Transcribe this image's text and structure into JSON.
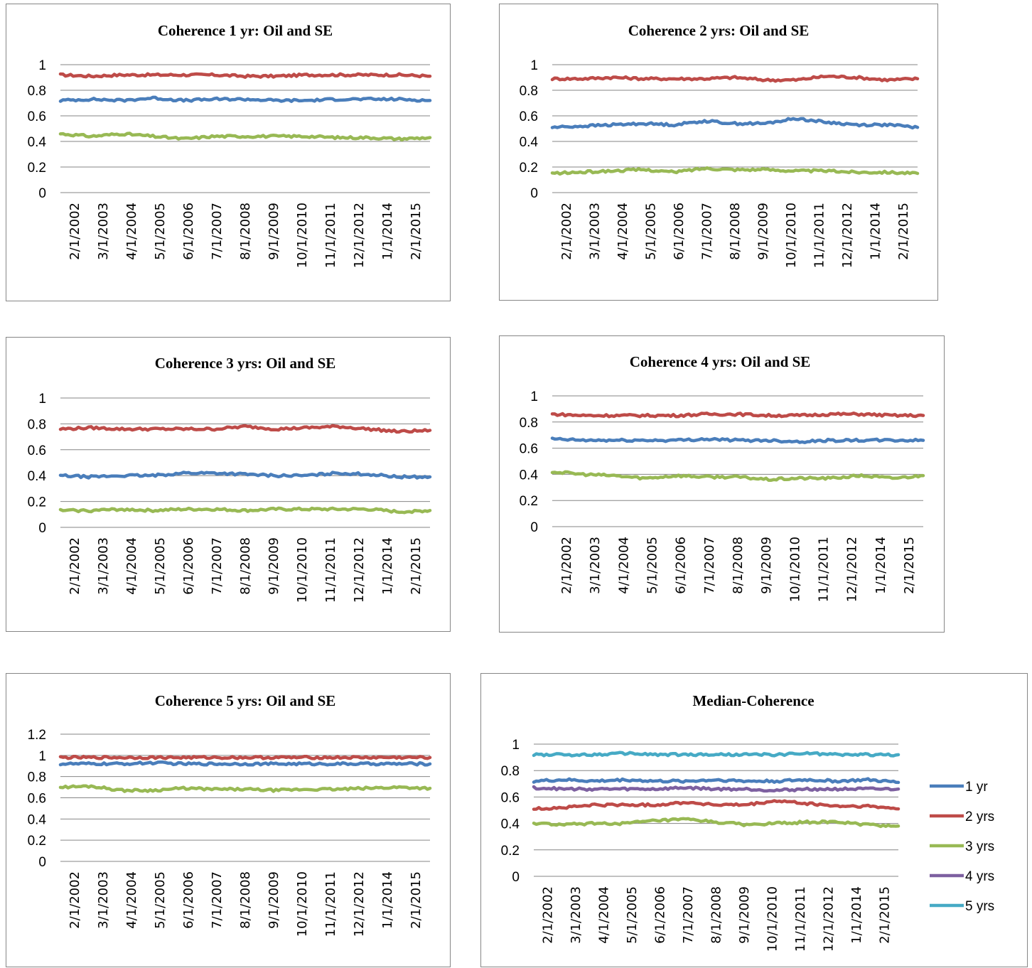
{
  "dates": [
    "2/1/2002",
    "3/1/2003",
    "4/1/2004",
    "5/1/2005",
    "6/1/2006",
    "7/1/2007",
    "8/1/2008",
    "9/1/2009",
    "10/1/2010",
    "11/1/2011",
    "12/1/2012",
    "1/1/2014",
    "2/1/2015"
  ],
  "colors": {
    "1 yr": "#4a7ebb",
    "2 yrs": "#be4b48",
    "3 yrs": "#98b954",
    "4 yrs": "#7d60a0",
    "5 yrs": "#46aac5"
  },
  "chart_data": [
    {
      "type": "line",
      "title": "Coherence 1 yr: Oil and SE",
      "x": [
        "2/1/2002",
        "3/1/2003",
        "4/1/2004",
        "5/1/2005",
        "6/1/2006",
        "7/1/2007",
        "8/1/2008",
        "9/1/2009",
        "10/1/2010",
        "11/1/2011",
        "12/1/2012",
        "1/1/2014",
        "2/1/2015"
      ],
      "y_ticks": [
        "0",
        "0.2",
        "0.4",
        "0.6",
        "0.8",
        "1"
      ],
      "ylim": [
        0,
        1
      ],
      "grid": true,
      "legend": false,
      "series": [
        {
          "color": "#be4b48",
          "values": [
            0.92,
            0.91,
            0.92,
            0.92,
            0.92,
            0.92,
            0.91,
            0.91,
            0.92,
            0.92,
            0.92,
            0.92,
            0.91
          ]
        },
        {
          "color": "#4a7ebb",
          "values": [
            0.72,
            0.73,
            0.72,
            0.74,
            0.72,
            0.73,
            0.73,
            0.72,
            0.72,
            0.73,
            0.73,
            0.73,
            0.72
          ]
        },
        {
          "color": "#98b954",
          "values": [
            0.46,
            0.44,
            0.46,
            0.44,
            0.42,
            0.44,
            0.44,
            0.44,
            0.44,
            0.43,
            0.43,
            0.42,
            0.43
          ]
        }
      ]
    },
    {
      "type": "line",
      "title": "Coherence 2 yrs: Oil and SE",
      "x": [
        "2/1/2002",
        "3/1/2003",
        "4/1/2004",
        "5/1/2005",
        "6/1/2006",
        "7/1/2007",
        "8/1/2008",
        "9/1/2009",
        "10/1/2010",
        "11/1/2011",
        "12/1/2012",
        "1/1/2014",
        "2/1/2015"
      ],
      "y_ticks": [
        "0",
        "0.2",
        "0.4",
        "0.6",
        "0.8",
        "1"
      ],
      "ylim": [
        0,
        1
      ],
      "grid": true,
      "legend": false,
      "series": [
        {
          "color": "#be4b48",
          "values": [
            0.89,
            0.89,
            0.9,
            0.89,
            0.89,
            0.89,
            0.9,
            0.88,
            0.88,
            0.91,
            0.9,
            0.88,
            0.89
          ]
        },
        {
          "color": "#4a7ebb",
          "values": [
            0.51,
            0.52,
            0.53,
            0.54,
            0.53,
            0.56,
            0.54,
            0.54,
            0.58,
            0.55,
            0.53,
            0.53,
            0.51
          ]
        },
        {
          "color": "#98b954",
          "values": [
            0.15,
            0.16,
            0.17,
            0.18,
            0.16,
            0.19,
            0.18,
            0.18,
            0.17,
            0.17,
            0.16,
            0.16,
            0.15
          ]
        }
      ]
    },
    {
      "type": "line",
      "title": "Coherence 3 yrs: Oil and SE",
      "x": [
        "2/1/2002",
        "3/1/2003",
        "4/1/2004",
        "5/1/2005",
        "6/1/2006",
        "7/1/2007",
        "8/1/2008",
        "9/1/2009",
        "10/1/2010",
        "11/1/2011",
        "12/1/2012",
        "1/1/2014",
        "2/1/2015"
      ],
      "y_ticks": [
        "0",
        "0.2",
        "0.4",
        "0.6",
        "0.8",
        "1"
      ],
      "ylim": [
        0,
        1
      ],
      "grid": true,
      "legend": false,
      "series": [
        {
          "color": "#be4b48",
          "values": [
            0.76,
            0.77,
            0.76,
            0.76,
            0.76,
            0.76,
            0.78,
            0.76,
            0.77,
            0.78,
            0.76,
            0.74,
            0.75
          ]
        },
        {
          "color": "#4a7ebb",
          "values": [
            0.4,
            0.39,
            0.4,
            0.4,
            0.42,
            0.42,
            0.41,
            0.4,
            0.4,
            0.42,
            0.41,
            0.39,
            0.39
          ]
        },
        {
          "color": "#98b954",
          "values": [
            0.13,
            0.13,
            0.14,
            0.13,
            0.14,
            0.14,
            0.13,
            0.14,
            0.14,
            0.14,
            0.14,
            0.12,
            0.13
          ]
        }
      ]
    },
    {
      "type": "line",
      "title": "Coherence 4 yrs: Oil and SE",
      "x": [
        "2/1/2002",
        "3/1/2003",
        "4/1/2004",
        "5/1/2005",
        "6/1/2006",
        "7/1/2007",
        "8/1/2008",
        "9/1/2009",
        "10/1/2010",
        "11/1/2011",
        "12/1/2012",
        "1/1/2014",
        "2/1/2015"
      ],
      "y_ticks": [
        "0",
        "0.2",
        "0.4",
        "0.6",
        "0.8",
        "1"
      ],
      "ylim": [
        0,
        1
      ],
      "grid": true,
      "legend": false,
      "series": [
        {
          "color": "#be4b48",
          "values": [
            0.86,
            0.85,
            0.85,
            0.85,
            0.85,
            0.86,
            0.86,
            0.85,
            0.85,
            0.86,
            0.86,
            0.85,
            0.85
          ]
        },
        {
          "color": "#4a7ebb",
          "values": [
            0.67,
            0.66,
            0.66,
            0.66,
            0.66,
            0.67,
            0.66,
            0.66,
            0.65,
            0.66,
            0.66,
            0.66,
            0.66
          ]
        },
        {
          "color": "#98b954",
          "values": [
            0.42,
            0.4,
            0.39,
            0.37,
            0.39,
            0.38,
            0.38,
            0.36,
            0.37,
            0.37,
            0.39,
            0.37,
            0.39
          ]
        }
      ]
    },
    {
      "type": "line",
      "title": "Coherence 5 yrs: Oil and SE",
      "x": [
        "2/1/2002",
        "3/1/2003",
        "4/1/2004",
        "5/1/2005",
        "6/1/2006",
        "7/1/2007",
        "8/1/2008",
        "9/1/2009",
        "10/1/2010",
        "11/1/2011",
        "12/1/2012",
        "1/1/2014",
        "2/1/2015"
      ],
      "y_ticks": [
        "0",
        "0.2",
        "0.4",
        "0.6",
        "0.8",
        "1",
        "1.2"
      ],
      "ylim": [
        0,
        1.2
      ],
      "grid": true,
      "legend": false,
      "series": [
        {
          "color": "#be4b48",
          "values": [
            0.98,
            0.98,
            0.98,
            0.98,
            0.98,
            0.98,
            0.98,
            0.98,
            0.98,
            0.98,
            0.98,
            0.98,
            0.98
          ]
        },
        {
          "color": "#4a7ebb",
          "values": [
            0.92,
            0.92,
            0.92,
            0.93,
            0.92,
            0.92,
            0.92,
            0.92,
            0.92,
            0.92,
            0.92,
            0.92,
            0.92
          ]
        },
        {
          "color": "#98b954",
          "values": [
            0.7,
            0.71,
            0.67,
            0.67,
            0.69,
            0.68,
            0.68,
            0.67,
            0.68,
            0.68,
            0.69,
            0.7,
            0.69
          ]
        }
      ]
    },
    {
      "type": "line",
      "title": "Median-Coherence",
      "x": [
        "2/1/2002",
        "3/1/2003",
        "4/1/2004",
        "5/1/2005",
        "6/1/2006",
        "7/1/2007",
        "8/1/2008",
        "9/1/2009",
        "10/1/2010",
        "11/1/2011",
        "12/1/2012",
        "1/1/2014",
        "2/1/2015"
      ],
      "y_ticks": [
        "0",
        "0.2",
        "0.4",
        "0.6",
        "0.8",
        "1"
      ],
      "ylim": [
        0,
        1
      ],
      "grid": true,
      "legend": "right",
      "series": [
        {
          "name": "1 yr",
          "color": "#4a7ebb",
          "values": [
            0.72,
            0.73,
            0.72,
            0.73,
            0.72,
            0.72,
            0.73,
            0.72,
            0.72,
            0.73,
            0.72,
            0.73,
            0.71
          ]
        },
        {
          "name": "2 yrs",
          "color": "#be4b48",
          "values": [
            0.51,
            0.52,
            0.54,
            0.54,
            0.54,
            0.56,
            0.54,
            0.54,
            0.57,
            0.55,
            0.53,
            0.53,
            0.51
          ]
        },
        {
          "name": "3 yrs",
          "color": "#98b954",
          "values": [
            0.4,
            0.39,
            0.4,
            0.4,
            0.42,
            0.43,
            0.41,
            0.39,
            0.4,
            0.41,
            0.41,
            0.39,
            0.38
          ]
        },
        {
          "name": "4 yrs",
          "color": "#7d60a0",
          "values": [
            0.67,
            0.66,
            0.66,
            0.66,
            0.66,
            0.67,
            0.66,
            0.66,
            0.65,
            0.66,
            0.66,
            0.66,
            0.66
          ]
        },
        {
          "name": "5 yrs",
          "color": "#46aac5",
          "values": [
            0.92,
            0.92,
            0.92,
            0.93,
            0.92,
            0.92,
            0.92,
            0.92,
            0.92,
            0.93,
            0.92,
            0.92,
            0.92
          ]
        }
      ]
    }
  ]
}
